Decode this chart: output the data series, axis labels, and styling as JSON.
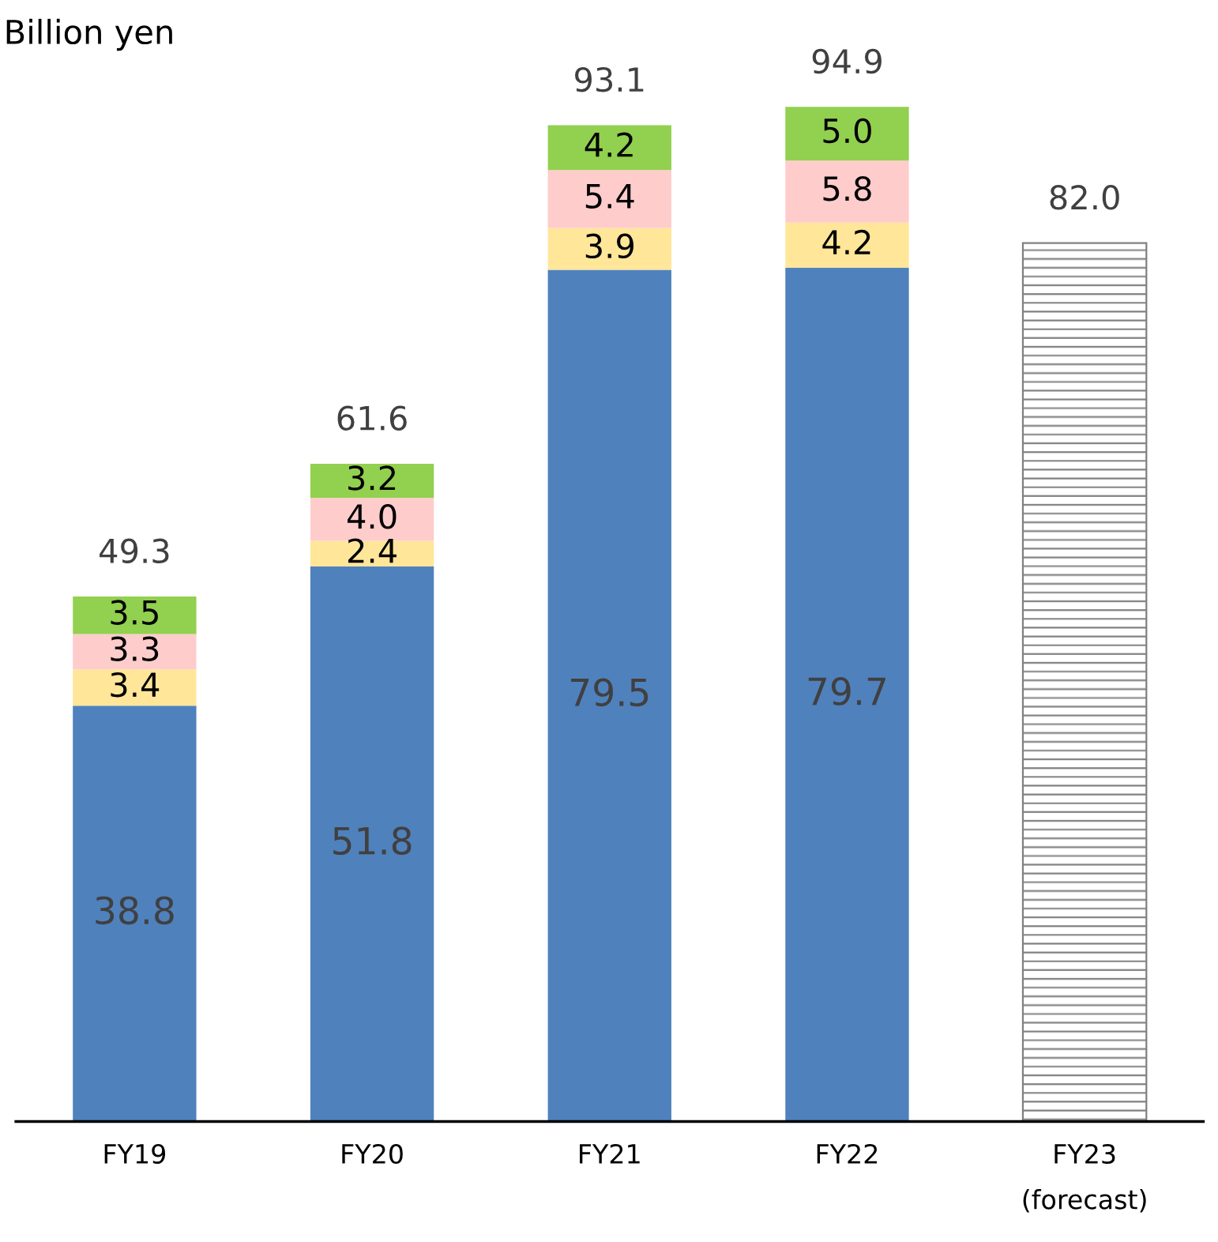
{
  "chart_data": {
    "type": "bar",
    "stacked": true,
    "ylabel": "Billion yen",
    "categories": [
      "FY19",
      "FY20",
      "FY21",
      "FY22",
      "FY23\n(forecast)"
    ],
    "series": [
      {
        "color": "#4f81bd",
        "values": [
          38.8,
          51.8,
          79.5,
          79.7,
          null
        ],
        "value_labels": [
          "38.8",
          "51.8",
          "79.5",
          "79.7",
          null
        ]
      },
      {
        "color": "#ffe699",
        "values": [
          3.4,
          2.4,
          3.9,
          4.2,
          null
        ],
        "value_labels": [
          "3.4",
          "2.4",
          "3.9",
          "4.2",
          null
        ]
      },
      {
        "color": "#ffcccc",
        "values": [
          3.3,
          4.0,
          5.4,
          5.8,
          null
        ],
        "value_labels": [
          "3.3",
          "4.0",
          "5.4",
          "5.8",
          null
        ]
      },
      {
        "color": "#92d050",
        "values": [
          3.5,
          3.2,
          4.2,
          5.0,
          null
        ],
        "value_labels": [
          "3.5",
          "3.2",
          "4.2",
          "5.0",
          null
        ]
      },
      {
        "color": "#808080",
        "values": [
          null,
          null,
          null,
          null,
          82.0
        ],
        "value_labels": [
          null,
          null,
          null,
          null,
          null
        ]
      }
    ],
    "totals": [
      "49.3",
      "61.6",
      "93.1",
      "94.9",
      "82.0"
    ],
    "tick_labels": "x",
    "grid": false,
    "legend": false
  }
}
